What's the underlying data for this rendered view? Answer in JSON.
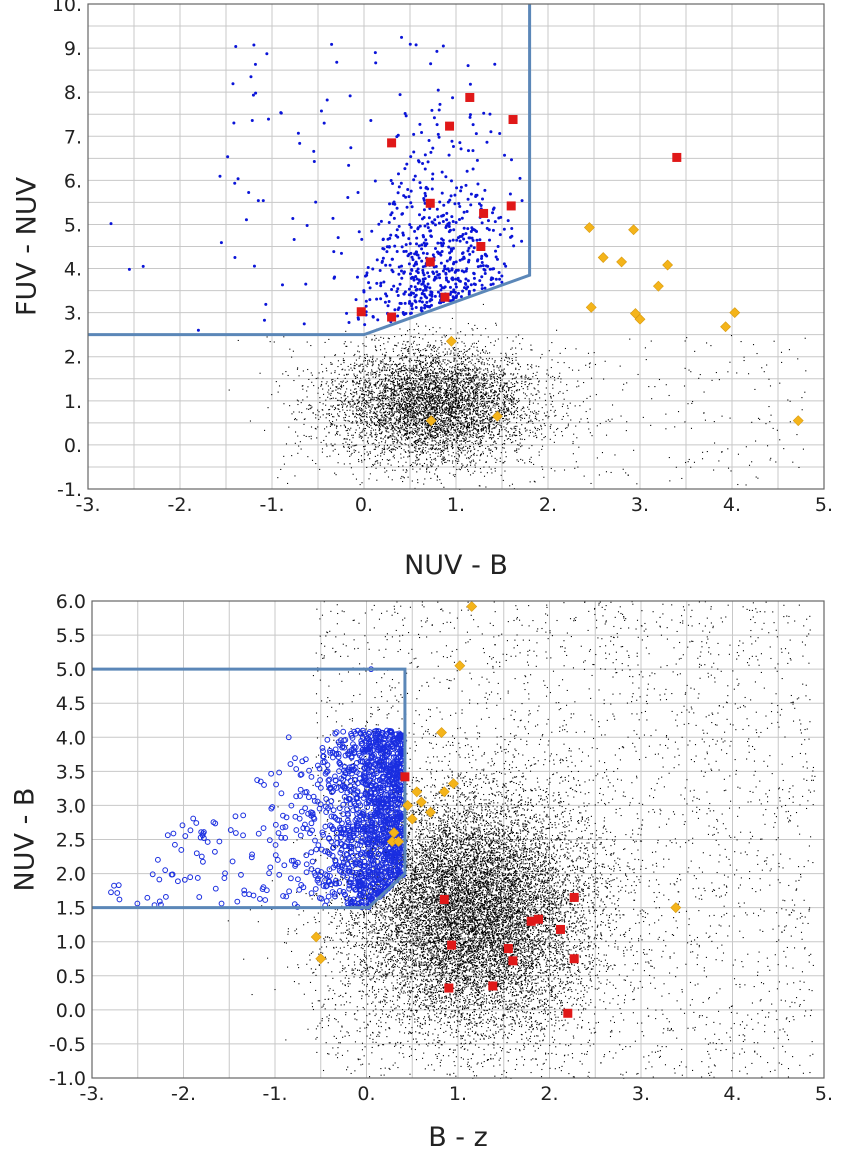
{
  "chart_data": [
    {
      "type": "scatter",
      "xlabel": "NUV - B",
      "ylabel": "FUV - NUV",
      "xlim": [
        -3,
        5
      ],
      "ylim": [
        -1,
        10
      ],
      "grid": true,
      "x_ticks": [
        -3,
        -2,
        -1,
        0,
        1,
        2,
        3,
        4,
        5
      ],
      "x_tick_labels": [
        "-3.",
        "-2.",
        "-1.",
        "0.",
        "1.",
        "2.",
        "3.",
        "4.",
        "5."
      ],
      "y_ticks": [
        -1,
        0,
        1,
        2,
        3,
        4,
        5,
        6,
        7,
        8,
        9,
        10
      ],
      "y_tick_labels": [
        "-1.",
        "0.",
        "1.",
        "2.",
        "3.",
        "4.",
        "5.",
        "6.",
        "7.",
        "8.",
        "9.",
        "10."
      ],
      "colors": {
        "selection_line": "#5b87b8",
        "background_points": "#000000",
        "selected_points": "#0a14d8",
        "red_squares": "#e01818",
        "orange_diamonds": "#f4b41a"
      },
      "selection_boundary": [
        [
          -3,
          2.5
        ],
        [
          0,
          2.5
        ],
        [
          0.4,
          2.8
        ],
        [
          1.8,
          3.85
        ],
        [
          1.8,
          10
        ]
      ],
      "red_squares": [
        [
          -0.03,
          3.02
        ],
        [
          0.3,
          2.9
        ],
        [
          0.3,
          6.85
        ],
        [
          0.72,
          5.48
        ],
        [
          0.72,
          4.15
        ],
        [
          0.88,
          3.35
        ],
        [
          0.93,
          7.23
        ],
        [
          1.15,
          7.88
        ],
        [
          1.27,
          4.5
        ],
        [
          1.3,
          5.25
        ],
        [
          1.6,
          5.42
        ],
        [
          1.62,
          7.38
        ],
        [
          3.4,
          6.52
        ]
      ],
      "orange_diamonds": [
        [
          2.45,
          4.93
        ],
        [
          2.47,
          3.12
        ],
        [
          2.6,
          4.25
        ],
        [
          2.8,
          4.15
        ],
        [
          2.93,
          4.88
        ],
        [
          2.95,
          2.98
        ],
        [
          3.0,
          2.85
        ],
        [
          3.2,
          3.6
        ],
        [
          3.3,
          4.08
        ],
        [
          3.93,
          2.68
        ],
        [
          4.03,
          3.0
        ],
        [
          4.72,
          0.55
        ],
        [
          0.73,
          0.55
        ],
        [
          0.95,
          2.35
        ],
        [
          1.45,
          0.65
        ]
      ],
      "blue_points": {
        "count": 700,
        "outliers": [
          [
            -2.75,
            5.02
          ],
          [
            -2.55,
            3.98
          ],
          [
            -2.4,
            4.05
          ],
          [
            -1.8,
            2.6
          ]
        ]
      },
      "background_points": {
        "count": 6000
      }
    },
    {
      "type": "scatter",
      "xlabel": "B - z",
      "ylabel": "NUV - B",
      "xlim": [
        -3,
        5
      ],
      "ylim": [
        -1,
        6
      ],
      "grid": true,
      "x_ticks": [
        -3,
        -2,
        -1,
        0,
        1,
        2,
        3,
        4,
        5
      ],
      "x_tick_labels": [
        "-3.",
        "-2.",
        "-1.",
        "0.",
        "1.",
        "2.",
        "3.",
        "4.",
        "5."
      ],
      "y_ticks": [
        -1,
        -0.5,
        0,
        0.5,
        1,
        1.5,
        2,
        2.5,
        3,
        3.5,
        4,
        4.5,
        5,
        5.5,
        6
      ],
      "y_tick_labels": [
        "-1.0",
        "-0.5",
        "0.0",
        "0.5",
        "1.0",
        "1.5",
        "2.0",
        "2.5",
        "3.0",
        "3.5",
        "4.0",
        "4.5",
        "5.0",
        "5.5",
        "6.0"
      ],
      "colors": {
        "selection_line": "#5b87b8",
        "background_points": "#000000",
        "selected_points": "#1a2ee0",
        "red_squares": "#e01818",
        "orange_diamonds": "#f4b41a"
      },
      "selection_boundary": [
        [
          -3,
          5.0
        ],
        [
          0.42,
          5.0
        ],
        [
          0.42,
          2.0
        ],
        [
          0.02,
          1.5
        ],
        [
          -3,
          1.5
        ]
      ],
      "red_squares": [
        [
          0.42,
          3.42
        ],
        [
          0.85,
          1.62
        ],
        [
          0.9,
          0.32
        ],
        [
          0.93,
          0.95
        ],
        [
          1.38,
          0.35
        ],
        [
          1.55,
          0.9
        ],
        [
          1.6,
          0.72
        ],
        [
          1.8,
          1.3
        ],
        [
          1.88,
          1.33
        ],
        [
          2.12,
          1.18
        ],
        [
          2.2,
          -0.05
        ],
        [
          2.27,
          1.65
        ],
        [
          2.27,
          0.75
        ]
      ],
      "orange_diamonds": [
        [
          1.15,
          5.92
        ],
        [
          1.02,
          5.05
        ],
        [
          0.82,
          4.07
        ],
        [
          0.3,
          2.6
        ],
        [
          0.28,
          2.47
        ],
        [
          0.35,
          2.47
        ],
        [
          0.45,
          3.0
        ],
        [
          0.5,
          2.8
        ],
        [
          0.55,
          3.2
        ],
        [
          0.6,
          3.05
        ],
        [
          0.7,
          2.9
        ],
        [
          0.85,
          3.2
        ],
        [
          0.95,
          3.32
        ],
        [
          3.38,
          1.5
        ],
        [
          -0.55,
          1.07
        ],
        [
          -0.5,
          0.75
        ]
      ],
      "blue_points": {
        "count": 1400,
        "outliers": [
          [
            -2.7,
            1.62
          ],
          [
            -2.2,
            2.05
          ],
          [
            -1.8,
            2.25
          ],
          [
            -0.85,
            4.0
          ],
          [
            0.05,
            5.0
          ]
        ]
      },
      "background_points": {
        "count": 16000
      }
    }
  ]
}
